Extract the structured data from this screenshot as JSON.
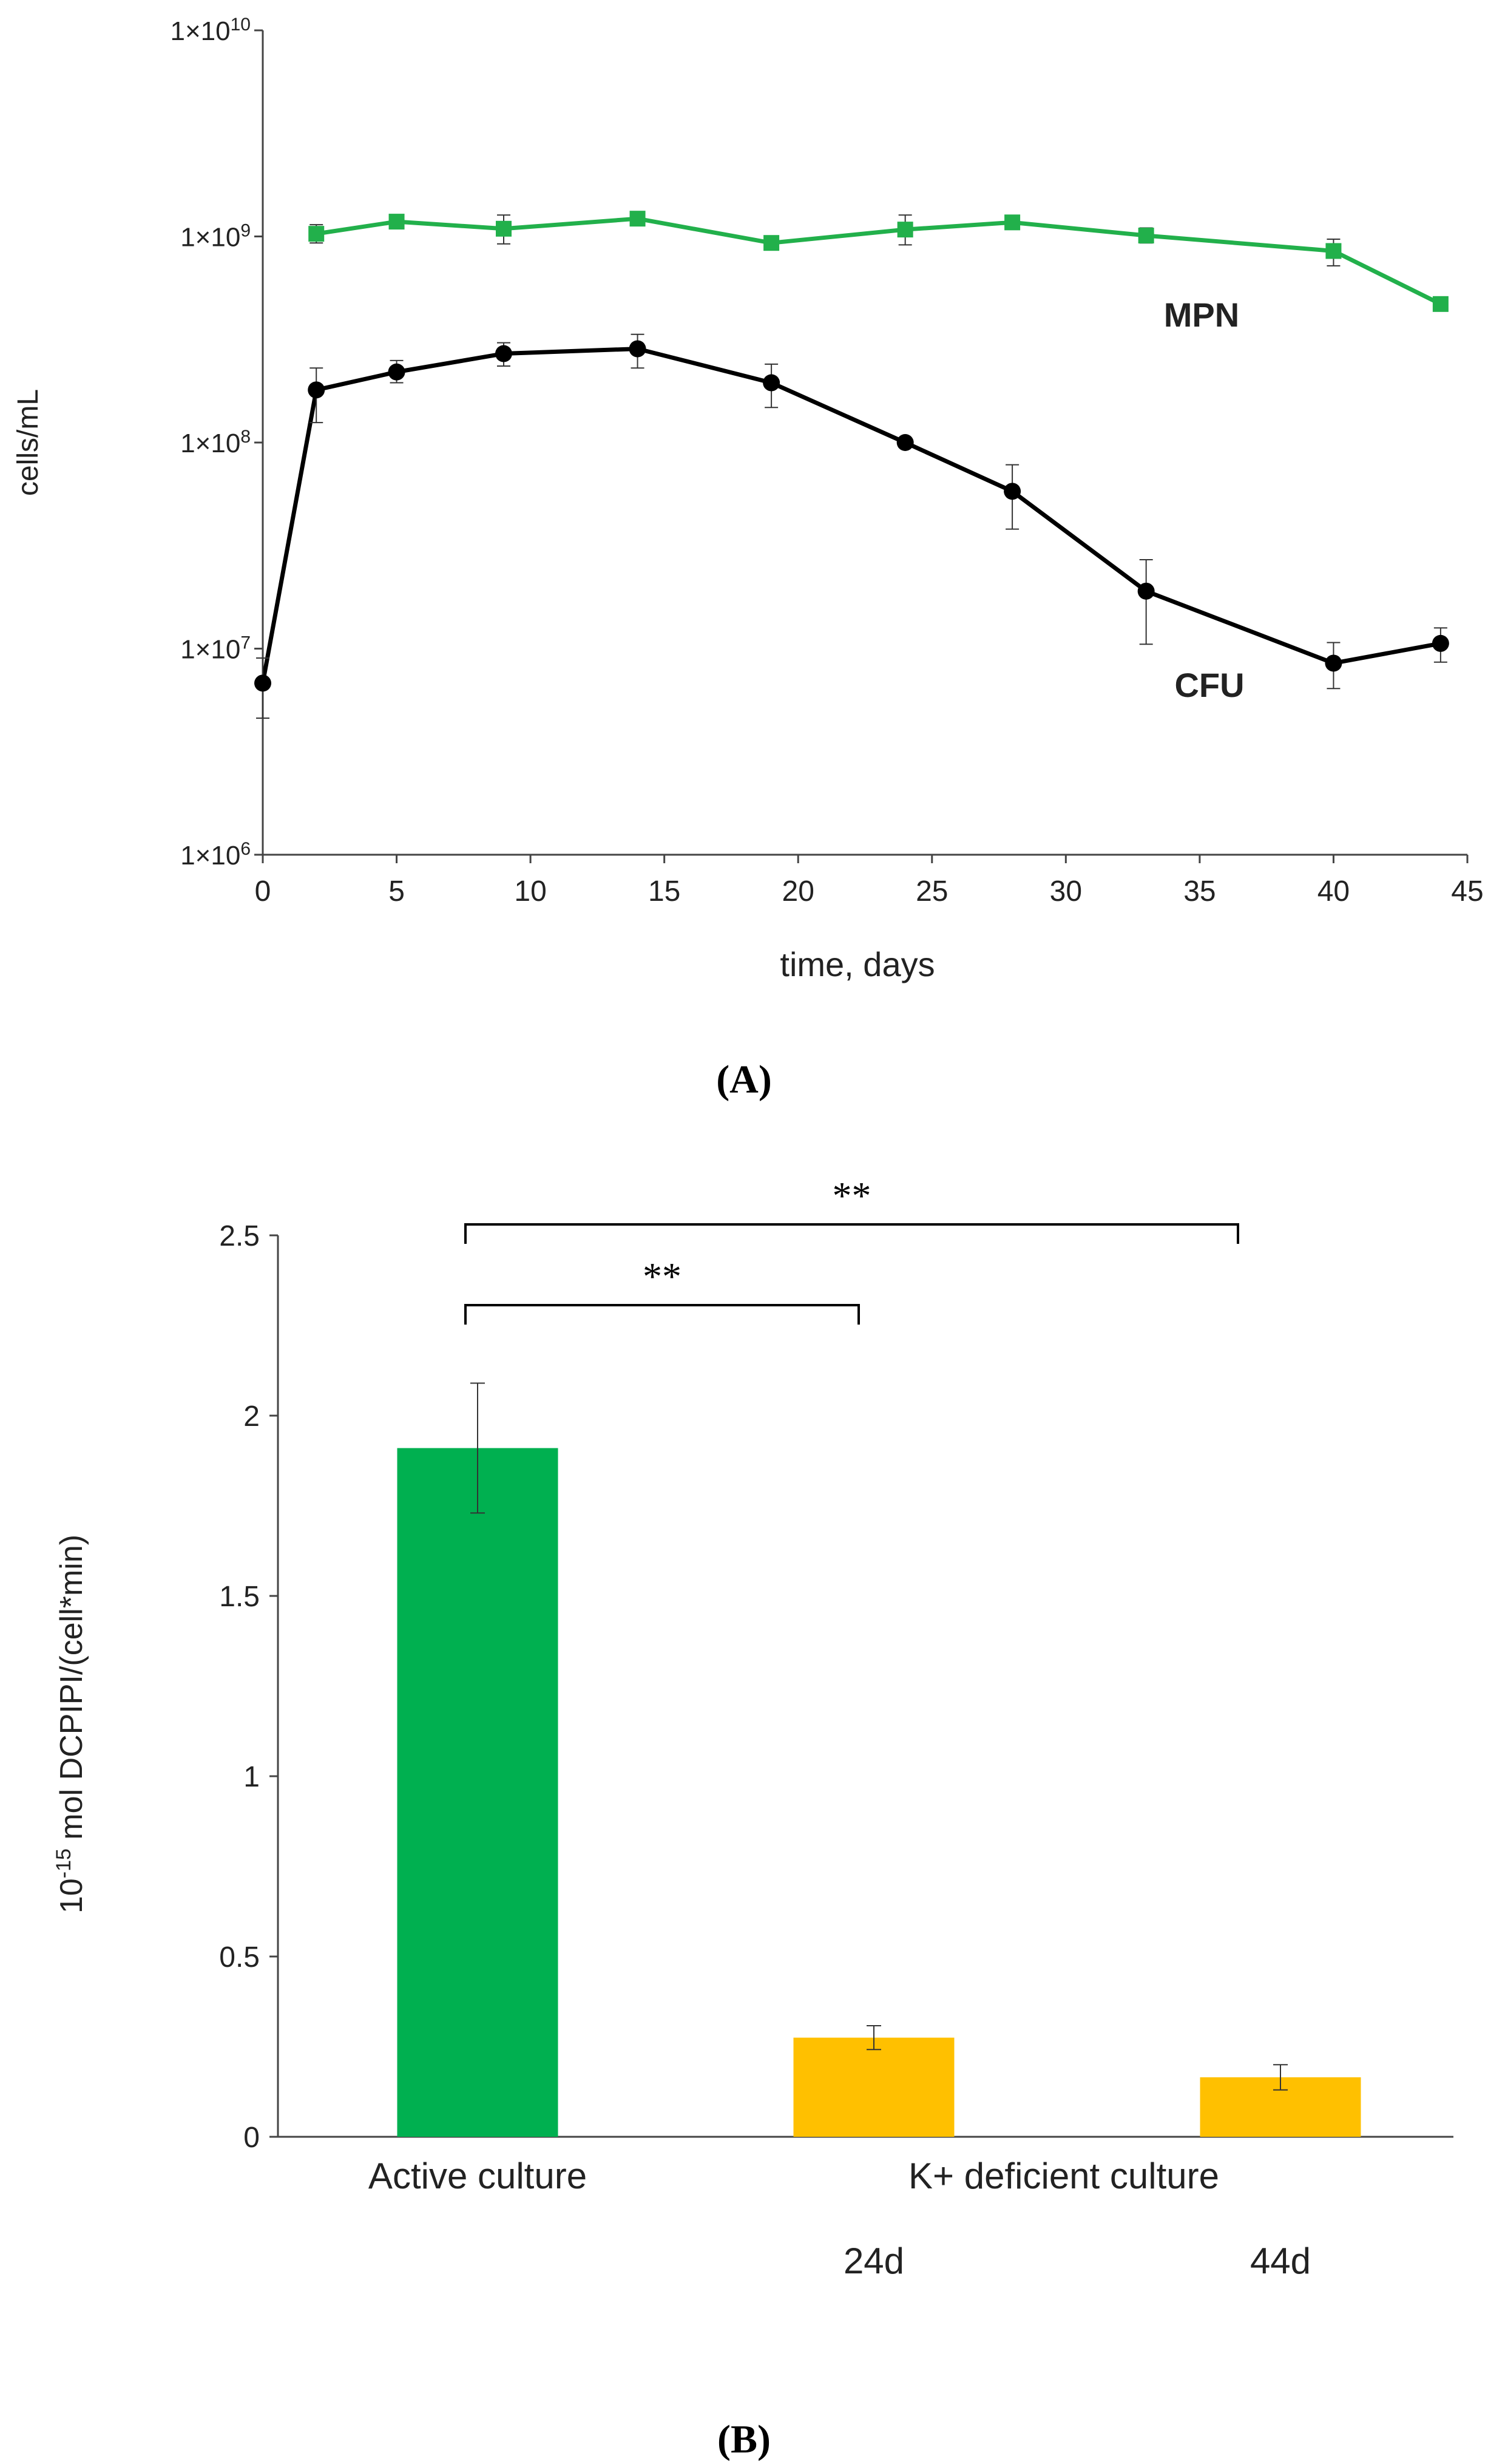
{
  "chart_data": [
    {
      "panel": "A",
      "type": "line",
      "yscale": "log",
      "ylim": [
        1000000,
        10000000000
      ],
      "xlim": [
        0,
        45
      ],
      "ylabel": "cells/mL",
      "xlabel": "time, days",
      "xticks": [
        "0",
        "5",
        "10",
        "15",
        "20",
        "25",
        "30",
        "35",
        "40",
        "45"
      ],
      "yticks": [
        {
          "value": 1000000,
          "base": "1×10",
          "exp": "6"
        },
        {
          "value": 10000000,
          "base": "1×10",
          "exp": "7"
        },
        {
          "value": 100000000,
          "base": "1×10",
          "exp": "8"
        },
        {
          "value": 1000000000,
          "base": "1×10",
          "exp": "9"
        },
        {
          "value": 10000000000,
          "base": "1×10",
          "exp": "10"
        }
      ],
      "series": [
        {
          "name": "MPN",
          "label": "MPN",
          "color": "#22b04b",
          "marker": "square",
          "points": [
            {
              "x": 2.0,
              "y": 1030000000.0,
              "lo": 930000000.0,
              "hi": 1140000000.0
            },
            {
              "x": 5.0,
              "y": 1180000000.0,
              "lo": 1130000000.0,
              "hi": 1230000000.0
            },
            {
              "x": 9.0,
              "y": 1090000000.0,
              "lo": 920000000.0,
              "hi": 1270000000.0
            },
            {
              "x": 14.0,
              "y": 1220000000.0,
              "lo": 1160000000.0,
              "hi": 1280000000.0
            },
            {
              "x": 19.0,
              "y": 930000000.0,
              "lo": 900000000.0,
              "hi": 970000000.0
            },
            {
              "x": 24.0,
              "y": 1080000000.0,
              "lo": 910000000.0,
              "hi": 1270000000.0
            },
            {
              "x": 28.0,
              "y": 1170000000.0,
              "lo": 1120000000.0,
              "hi": 1220000000.0
            },
            {
              "x": 33.0,
              "y": 1010000000.0,
              "lo": 930000000.0,
              "hi": 1100000000.0
            },
            {
              "x": 40.0,
              "y": 850000000.0,
              "lo": 720000000.0,
              "hi": 970000000.0
            },
            {
              "x": 44.0,
              "y": 470000000.0,
              "lo": 450000000.0,
              "hi": 490000000.0
            }
          ]
        },
        {
          "name": "CFU",
          "label": "CFU",
          "color": "#000000",
          "marker": "circle",
          "points": [
            {
              "x": 0.0,
              "y": 6800000.0,
              "lo": 4600000.0,
              "hi": 9000000.0
            },
            {
              "x": 2.0,
              "y": 180000000.0,
              "lo": 125000000.0,
              "hi": 230000000.0
            },
            {
              "x": 5.0,
              "y": 220000000.0,
              "lo": 195000000.0,
              "hi": 250000000.0
            },
            {
              "x": 9.0,
              "y": 270000000.0,
              "lo": 235000000.0,
              "hi": 305000000.0
            },
            {
              "x": 14.0,
              "y": 285000000.0,
              "lo": 230000000.0,
              "hi": 335000000.0
            },
            {
              "x": 19.0,
              "y": 195000000.0,
              "lo": 148000000.0,
              "hi": 240000000.0
            },
            {
              "x": 24.0,
              "y": 100000000.0,
              "lo": 97000000.0,
              "hi": 103000000.0
            },
            {
              "x": 28.0,
              "y": 58000000.0,
              "lo": 38000000.0,
              "hi": 78000000.0
            },
            {
              "x": 33.0,
              "y": 19000000.0,
              "lo": 10500000.0,
              "hi": 27000000.0
            },
            {
              "x": 40.0,
              "y": 8500000.0,
              "lo": 6400000.0,
              "hi": 10700000.0
            },
            {
              "x": 44.0,
              "y": 10600000.0,
              "lo": 8600000.0,
              "hi": 12600000.0
            }
          ]
        }
      ]
    },
    {
      "panel": "B",
      "type": "bar",
      "ylim": [
        0,
        2.5
      ],
      "yticks": [
        "0",
        "0.5",
        "1",
        "1.5",
        "2",
        "2.5"
      ],
      "ylabel_base": "10",
      "ylabel_exp": "-15",
      "ylabel_rest": " mol DCPIPI/(cell*min)",
      "categories": [
        "Active culture",
        "24d",
        "44d"
      ],
      "group_label": "K+ deficient culture",
      "values": [
        1.91,
        0.275,
        0.165
      ],
      "errors": [
        0.18,
        0.033,
        0.035
      ],
      "colors": [
        "#00b050",
        "#ffc000",
        "#ffc000"
      ],
      "significance": [
        {
          "from": 0,
          "to": 1,
          "label": "**"
        },
        {
          "from": 0,
          "to": 2,
          "label": "**"
        }
      ]
    }
  ],
  "panel_labels": {
    "a": "(A)",
    "b": "(B)"
  }
}
